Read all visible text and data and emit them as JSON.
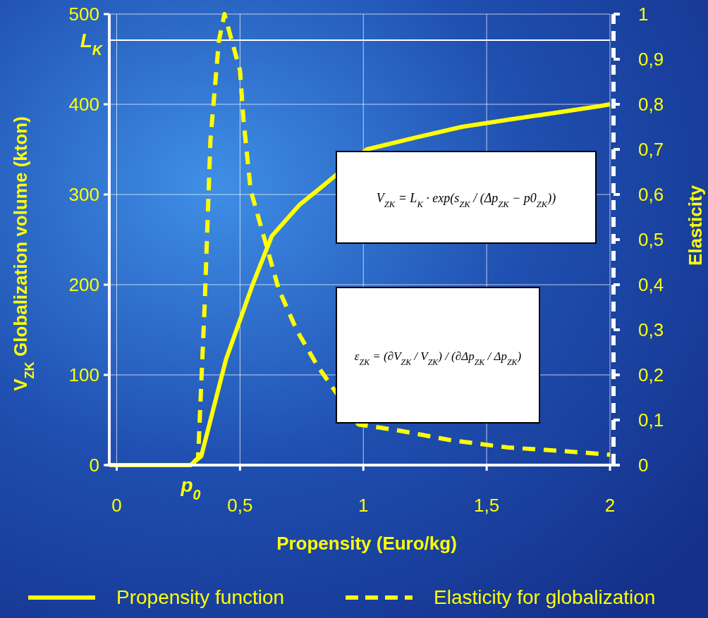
{
  "chart_data": {
    "type": "line",
    "xlabel": "Propensity (Euro/kg)",
    "ylabel": "V$_{ZK}$   Globalization volume (kton)",
    "y2label": "Elasticity",
    "xlim": [
      -0.03,
      2
    ],
    "xticks": [
      0,
      {
        "value": 0.5,
        "label": "0,5"
      },
      1,
      {
        "value": 1.5,
        "label": "1,5"
      },
      2
    ],
    "ylim": [
      0,
      500
    ],
    "yticks": [
      0,
      100,
      200,
      300,
      400,
      500
    ],
    "y2lim": [
      0,
      1
    ],
    "y2ticks": [
      0,
      {
        "value": 0.1,
        "label": "0,1"
      },
      {
        "value": 0.2,
        "label": "0,2"
      },
      {
        "value": 0.3,
        "label": "0,3"
      },
      {
        "value": 0.4,
        "label": "0,4"
      },
      {
        "value": 0.5,
        "label": "0,5"
      },
      {
        "value": 0.6,
        "label": "0,6"
      },
      {
        "value": 0.7,
        "label": "0,7"
      },
      {
        "value": 0.8,
        "label": "0,8"
      },
      {
        "value": 0.9,
        "label": "0,9"
      },
      1
    ],
    "grid": true,
    "legend": "bottom",
    "series": [
      {
        "name": "Propensity function",
        "color": "#ffff00",
        "line_style": "solid",
        "x": [
          -0.03,
          0.1,
          0.2,
          0.3,
          0.343,
          0.443,
          0.551,
          0.629,
          0.743,
          0.843,
          1.014,
          1.21,
          1.4,
          1.59,
          1.79,
          1.96,
          2
        ],
        "values": [
          0,
          0,
          0,
          0,
          10,
          117,
          200,
          254,
          289,
          311,
          350,
          363,
          375,
          383,
          391,
          398,
          400
        ]
      },
      {
        "name": "Elasticity for globalization",
        "color": "#ffff00",
        "line_style": "dashed",
        "axis": "y2",
        "x": [
          -0.03,
          0.1,
          0.2,
          0.3,
          0.33,
          0.357,
          0.38,
          0.414,
          0.437,
          0.5,
          0.514,
          0.543,
          0.6,
          0.657,
          0.729,
          0.814,
          0.98,
          1.13,
          1.357,
          1.586,
          1.814,
          2
        ],
        "values": [
          0,
          0,
          0,
          0,
          0.016,
          0.36,
          0.72,
          0.94,
          1,
          0.875,
          0.766,
          0.61,
          0.5,
          0.39,
          0.3,
          0.22,
          0.09,
          0.078,
          0.055,
          0.039,
          0.031,
          0.023
        ]
      }
    ],
    "ref_lines": [
      {
        "axis": "y",
        "value": 471,
        "label": "L$_{K}$",
        "color": "#ffffff"
      }
    ],
    "annotations": [
      {
        "text": "p$_{0}$",
        "x": 0.3,
        "y": 0
      },
      "V$_{ZK}$ = L$_{K}$ · exp(s$_{ZK}$ / (Δp$_{ZK}$ − p0$_{ZK}$))",
      "ε$_{ZK}$ = (∂V$_{ZK}$ / V$_{ZK}$) / (∂Δp$_{ZK}$ / Δp$_{ZK}$)"
    ]
  }
}
